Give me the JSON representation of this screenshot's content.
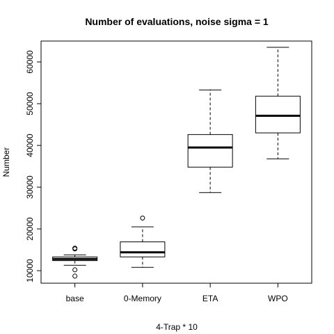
{
  "chart_data": {
    "type": "boxplot",
    "title": "Number of evaluations, noise sigma = 1",
    "xlabel": "4-Trap * 10",
    "ylabel": "Number",
    "ylim": [
      7000,
      65000
    ],
    "yticks": [
      10000,
      20000,
      30000,
      40000,
      50000,
      60000
    ],
    "yticklabels": [
      "10000",
      "20000",
      "30000",
      "40000",
      "50000",
      "60000"
    ],
    "grid": false,
    "categories": [
      "base",
      "0-Memory",
      "ETA",
      "WPO"
    ],
    "boxes": [
      {
        "category": "base",
        "whisker_low": 11300,
        "q1": 12400,
        "median": 12800,
        "q3": 13300,
        "whisker_high": 13800,
        "outliers": [
          15200,
          15400,
          10200,
          8700
        ]
      },
      {
        "category": "0-Memory",
        "whisker_low": 10800,
        "q1": 13300,
        "median": 14400,
        "q3": 16900,
        "whisker_high": 20500,
        "outliers": [
          22600
        ]
      },
      {
        "category": "ETA",
        "whisker_low": 28700,
        "q1": 34800,
        "median": 39500,
        "q3": 42600,
        "whisker_high": 53300,
        "outliers": []
      },
      {
        "category": "WPO",
        "whisker_low": 36800,
        "q1": 43000,
        "median": 47100,
        "q3": 51800,
        "whisker_high": 63500,
        "outliers": []
      }
    ]
  }
}
